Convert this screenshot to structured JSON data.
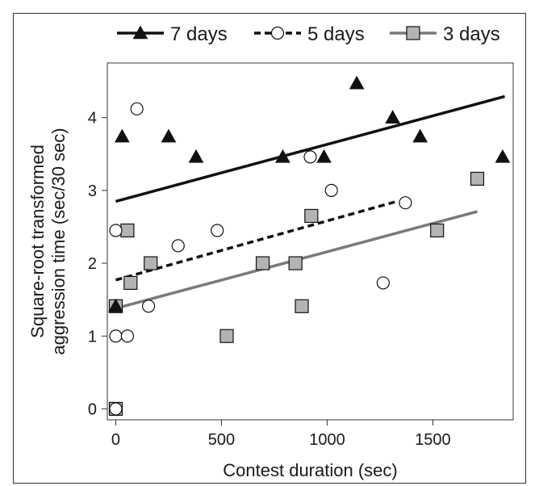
{
  "chart_data": {
    "type": "scatter",
    "title": "",
    "xlabel": "Contest duration (sec)",
    "ylabel_line1": "Square-root transformed",
    "ylabel_line2": "aggression time (sec/30 sec)",
    "xlim": [
      -40,
      1880
    ],
    "ylim": [
      -0.15,
      4.75
    ],
    "xticks": [
      0,
      500,
      1000,
      1500
    ],
    "yticks": [
      0,
      1,
      2,
      3,
      4
    ],
    "grid": false,
    "legend_position": "top",
    "series": [
      {
        "name": "7 days",
        "marker": "triangle",
        "line_style": "solid",
        "line_color": "#111111",
        "marker_fill": "#111111",
        "points": [
          [
            0,
            1.41
          ],
          [
            30,
            3.74
          ],
          [
            250,
            3.74
          ],
          [
            380,
            3.46
          ],
          [
            790,
            3.46
          ],
          [
            985,
            3.46
          ],
          [
            1140,
            4.47
          ],
          [
            1310,
            4.0
          ],
          [
            1440,
            3.74
          ],
          [
            1830,
            3.46
          ]
        ],
        "fit": [
          [
            0,
            2.85
          ],
          [
            1840,
            4.29
          ]
        ]
      },
      {
        "name": "5 days",
        "marker": "circle",
        "line_style": "dashed",
        "line_color": "#111111",
        "marker_fill": "#ffffff",
        "points": [
          [
            0,
            0.0
          ],
          [
            0,
            1.0
          ],
          [
            0,
            2.45
          ],
          [
            55,
            1.0
          ],
          [
            100,
            4.12
          ],
          [
            155,
            1.41
          ],
          [
            295,
            2.24
          ],
          [
            480,
            2.45
          ],
          [
            920,
            3.46
          ],
          [
            1020,
            3.0
          ],
          [
            1265,
            1.73
          ],
          [
            1370,
            2.83
          ]
        ],
        "fit": [
          [
            0,
            1.77
          ],
          [
            1330,
            2.85
          ]
        ]
      },
      {
        "name": "3 days",
        "marker": "square",
        "line_style": "solid",
        "line_color": "#7a7a7a",
        "marker_fill": "#b3b3b3",
        "points": [
          [
            0,
            0.0
          ],
          [
            0,
            1.41
          ],
          [
            55,
            2.45
          ],
          [
            70,
            1.73
          ],
          [
            165,
            2.0
          ],
          [
            525,
            1.0
          ],
          [
            695,
            2.0
          ],
          [
            850,
            2.0
          ],
          [
            880,
            1.41
          ],
          [
            925,
            2.65
          ],
          [
            1520,
            2.45
          ],
          [
            1710,
            3.16
          ]
        ],
        "fit": [
          [
            0,
            1.38
          ],
          [
            1710,
            2.71
          ]
        ]
      }
    ]
  }
}
